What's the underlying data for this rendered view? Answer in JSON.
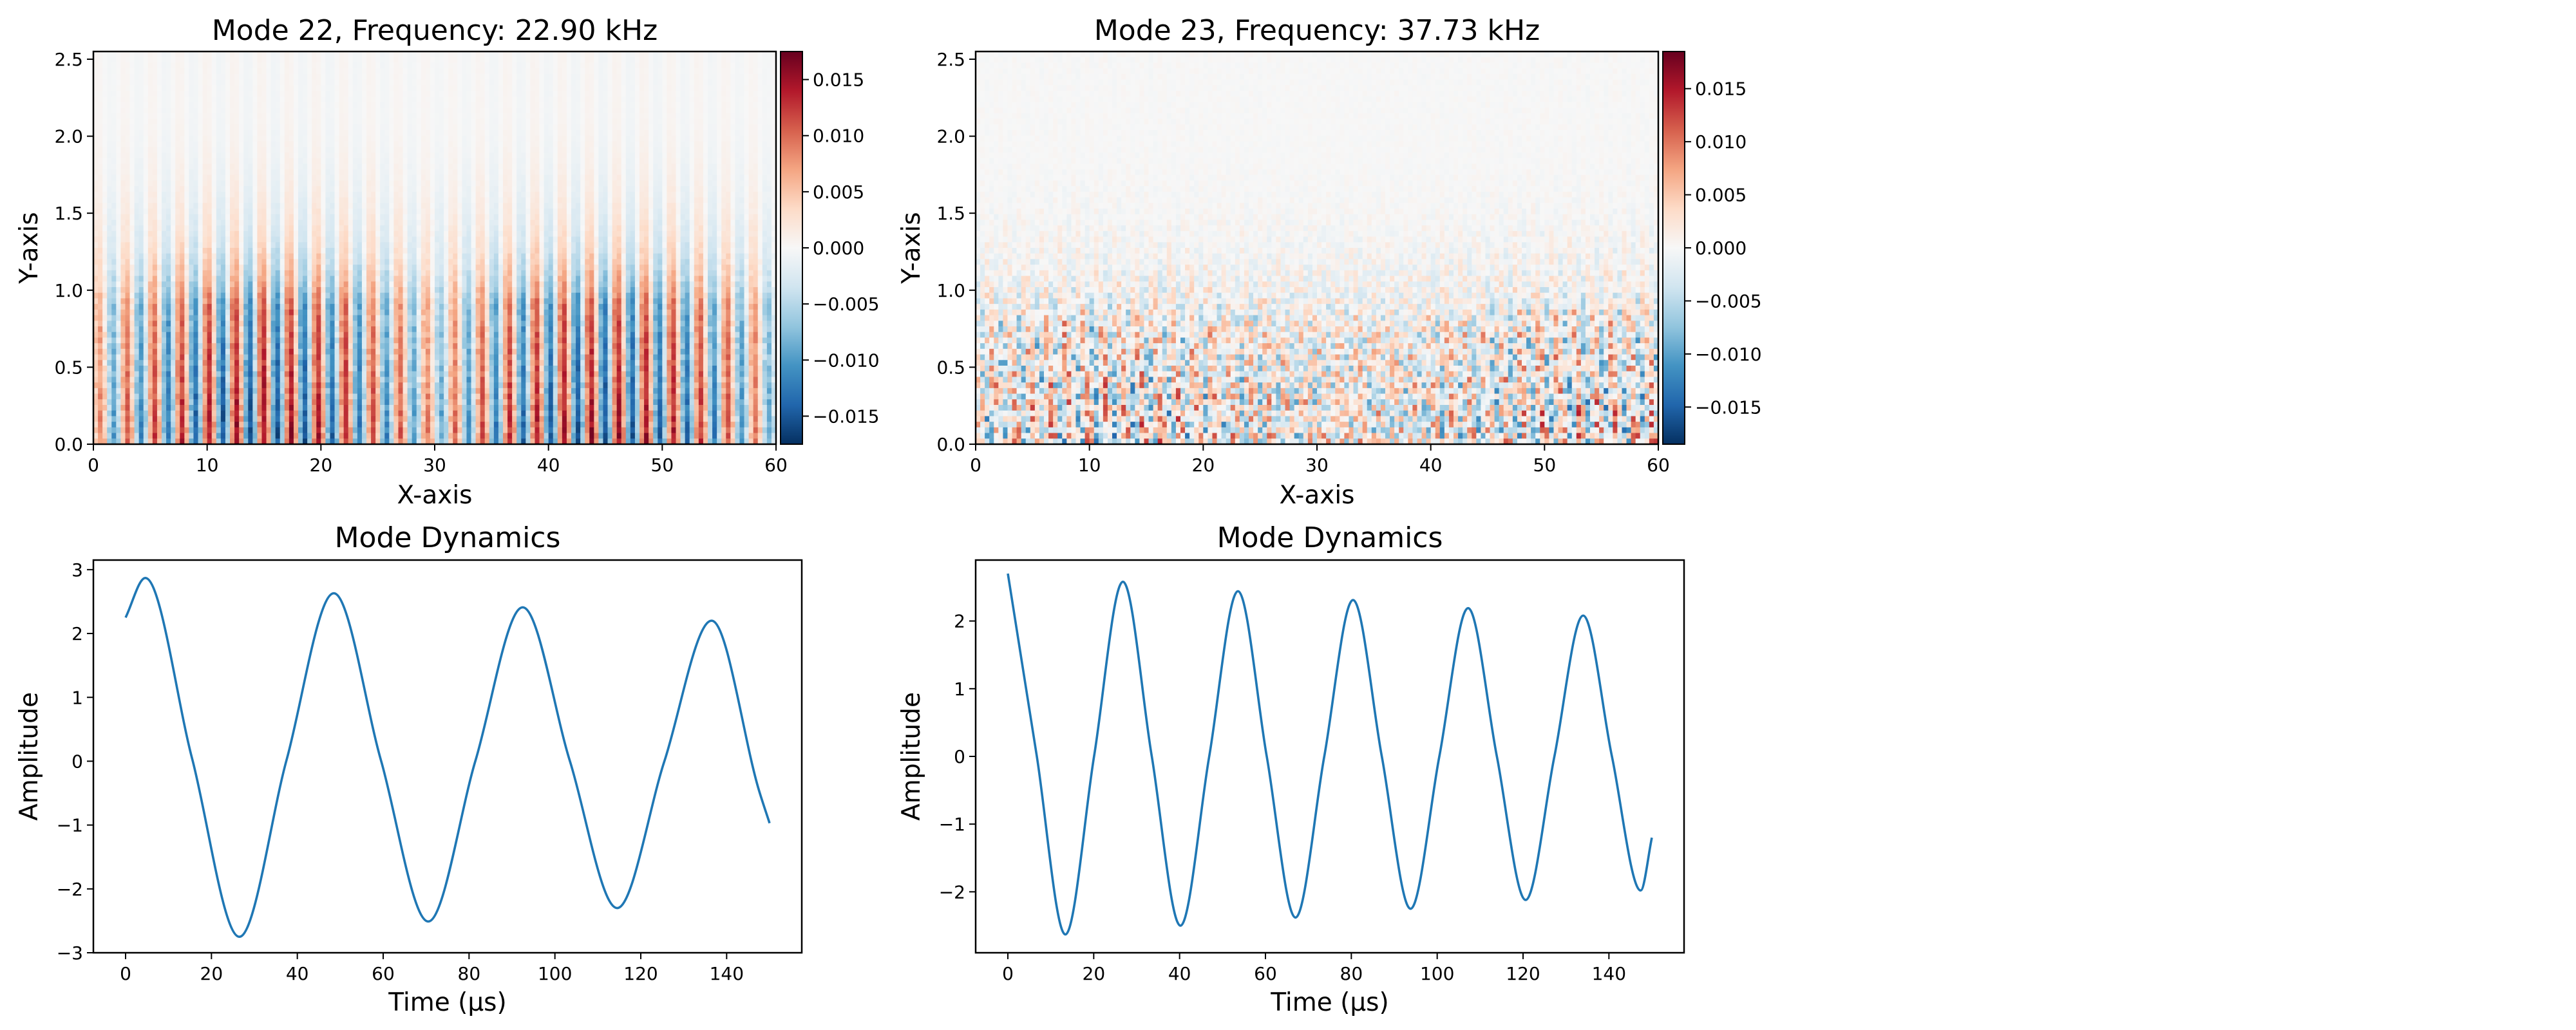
{
  "chart_data": [
    {
      "type": "heatmap",
      "title": "Mode 22, Frequency: 22.90 kHz",
      "xlabel": "X-axis",
      "ylabel": "Y-axis",
      "xlim": [
        0,
        60
      ],
      "ylim": [
        0,
        2.55
      ],
      "x_ticks": [
        "0",
        "10",
        "20",
        "30",
        "40",
        "50",
        "60"
      ],
      "y_ticks": [
        "0.0",
        "0.5",
        "1.0",
        "1.5",
        "2.0",
        "2.5"
      ],
      "colormap": "RdBu_r",
      "colorbar": {
        "range": [
          -0.0175,
          0.0175
        ],
        "ticks": [
          0.015,
          0.01,
          0.005,
          0.0,
          -0.005,
          -0.01,
          -0.015
        ],
        "tick_labels": [
          "0.015",
          "0.010",
          "0.005",
          "0.000",
          "−0.005",
          "−0.010",
          "−0.015"
        ]
      },
      "grid": false,
      "pattern": "vertical stripes, wavelength ~2.4 X units, strongest below Y=1.0, near zero above Y=1.5"
    },
    {
      "type": "heatmap",
      "title": "Mode 23, Frequency: 37.73 kHz",
      "xlabel": "X-axis",
      "ylabel": "Y-axis",
      "xlim": [
        0,
        60
      ],
      "ylim": [
        0,
        2.55
      ],
      "x_ticks": [
        "0",
        "10",
        "20",
        "30",
        "40",
        "50",
        "60"
      ],
      "y_ticks": [
        "0.0",
        "0.5",
        "1.0",
        "1.5",
        "2.0",
        "2.5"
      ],
      "colormap": "RdBu_r",
      "colorbar": {
        "range": [
          -0.0185,
          0.0185
        ],
        "ticks": [
          0.015,
          0.01,
          0.005,
          0.0,
          -0.005,
          -0.01,
          -0.015
        ],
        "tick_labels": [
          "0.015",
          "0.010",
          "0.005",
          "0.000",
          "−0.005",
          "−0.010",
          "−0.015"
        ]
      },
      "grid": false,
      "pattern": "fine noisy fluctuations, strongest below Y=0.8, near zero above Y=1.5"
    },
    {
      "type": "line",
      "title": "Mode Dynamics",
      "xlabel": "Time (μs)",
      "ylabel": "Amplitude",
      "xlim": [
        -7.5,
        157.5
      ],
      "ylim": [
        -3.0,
        3.15
      ],
      "x_ticks": [
        "0",
        "20",
        "40",
        "60",
        "80",
        "100",
        "120",
        "140"
      ],
      "y_ticks": [
        "3",
        "2",
        "1",
        "0",
        "−1",
        "−2",
        "−3"
      ],
      "grid": false,
      "series": [
        {
          "color": "#1f77b4",
          "x": [
            0,
            4.6,
            15.5,
            26.5,
            37.5,
            48.5,
            59.5,
            70.5,
            81.5,
            92.5,
            103.5,
            114.5,
            125.5,
            136.5,
            147.5,
            150
          ],
          "y": [
            2.25,
            2.87,
            0.04,
            -2.75,
            0.02,
            2.63,
            0.01,
            -2.51,
            0.01,
            2.41,
            0.0,
            -2.3,
            0.0,
            2.2,
            -0.45,
            -0.97
          ]
        }
      ]
    },
    {
      "type": "line",
      "title": "Mode Dynamics",
      "xlabel": "Time (μs)",
      "ylabel": "Amplitude",
      "xlim": [
        -7.5,
        157.5
      ],
      "ylim": [
        -2.9,
        2.9
      ],
      "x_ticks": [
        "0",
        "20",
        "40",
        "60",
        "80",
        "100",
        "120",
        "140"
      ],
      "y_ticks": [
        "2",
        "1",
        "0",
        "−1",
        "−2"
      ],
      "grid": false,
      "series": [
        {
          "color": "#1f77b4",
          "x": [
            0,
            6.7,
            13.4,
            20.1,
            26.8,
            33.5,
            40.2,
            46.9,
            53.6,
            60.3,
            67.0,
            73.7,
            80.4,
            87.1,
            93.8,
            100.5,
            107.2,
            113.9,
            120.6,
            127.3,
            134.0,
            140.7,
            147.4,
            150
          ],
          "y": [
            2.7,
            0.02,
            -2.63,
            0.01,
            2.58,
            0.01,
            -2.5,
            0.0,
            2.44,
            0.0,
            -2.38,
            0.0,
            2.31,
            0.0,
            -2.25,
            0.0,
            2.19,
            0.0,
            -2.12,
            0.0,
            2.08,
            0.0,
            -1.98,
            -1.2
          ]
        }
      ]
    }
  ]
}
